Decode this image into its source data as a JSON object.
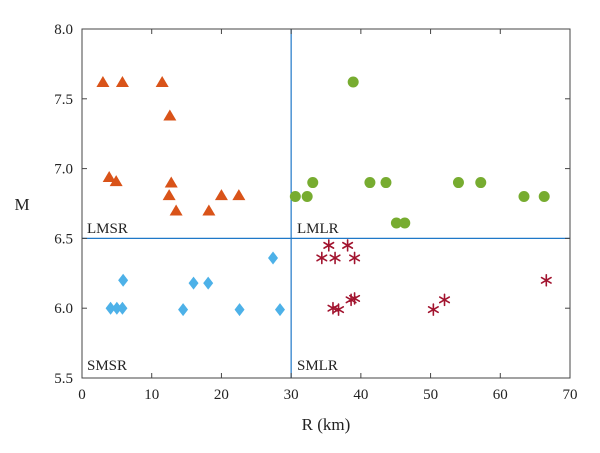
{
  "chart_data": {
    "type": "scatter",
    "xlabel": "R (km)",
    "ylabel": "M",
    "xlim": [
      0,
      70
    ],
    "ylim": [
      5.5,
      8.0
    ],
    "xticks": [
      "0",
      "10",
      "20",
      "30",
      "40",
      "50",
      "60",
      "70"
    ],
    "yticks": [
      "5.5",
      "6.0",
      "6.5",
      "7.0",
      "7.5",
      "8.0"
    ],
    "divider_x": 30,
    "divider_y": 6.5,
    "divider_color": "#1f78c8",
    "region_labels": {
      "top_left": "LMSR",
      "top_right": "LMLR",
      "bottom_left": "SMSR",
      "bottom_right": "SMLR"
    },
    "series": [
      {
        "marker": "triangle",
        "color": "#d95319",
        "points": [
          [
            3,
            7.62
          ],
          [
            5.8,
            7.62
          ],
          [
            11.5,
            7.62
          ],
          [
            12.6,
            7.38
          ],
          [
            3.9,
            6.94
          ],
          [
            4.9,
            6.91
          ],
          [
            12.8,
            6.9
          ],
          [
            12.5,
            6.81
          ],
          [
            20,
            6.81
          ],
          [
            22.5,
            6.81
          ],
          [
            13.5,
            6.7
          ],
          [
            18.2,
            6.7
          ]
        ]
      },
      {
        "marker": "circle",
        "color": "#77ac30",
        "points": [
          [
            38.9,
            7.62
          ],
          [
            33.1,
            6.9
          ],
          [
            41.3,
            6.9
          ],
          [
            43.6,
            6.9
          ],
          [
            54,
            6.9
          ],
          [
            57.2,
            6.9
          ],
          [
            30.6,
            6.8
          ],
          [
            32.3,
            6.8
          ],
          [
            63.4,
            6.8
          ],
          [
            66.3,
            6.8
          ],
          [
            45.1,
            6.61
          ],
          [
            46.3,
            6.61
          ]
        ]
      },
      {
        "marker": "diamond",
        "color": "#4db1e8",
        "points": [
          [
            27.4,
            6.36
          ],
          [
            5.9,
            6.2
          ],
          [
            16,
            6.18
          ],
          [
            18.1,
            6.18
          ],
          [
            4.1,
            6.0
          ],
          [
            5,
            6.0
          ],
          [
            5.8,
            6.0
          ],
          [
            14.5,
            5.99
          ],
          [
            22.6,
            5.99
          ],
          [
            28.4,
            5.99
          ]
        ]
      },
      {
        "marker": "asterisk",
        "color": "#a2142f",
        "points": [
          [
            35.4,
            6.45
          ],
          [
            38.1,
            6.45
          ],
          [
            34.4,
            6.36
          ],
          [
            36.3,
            6.36
          ],
          [
            39.1,
            6.36
          ],
          [
            66.6,
            6.2
          ],
          [
            38.6,
            6.06
          ],
          [
            39.1,
            6.07
          ],
          [
            52,
            6.06
          ],
          [
            36,
            6.0
          ],
          [
            36.8,
            5.99
          ],
          [
            50.4,
            5.99
          ]
        ]
      }
    ]
  }
}
